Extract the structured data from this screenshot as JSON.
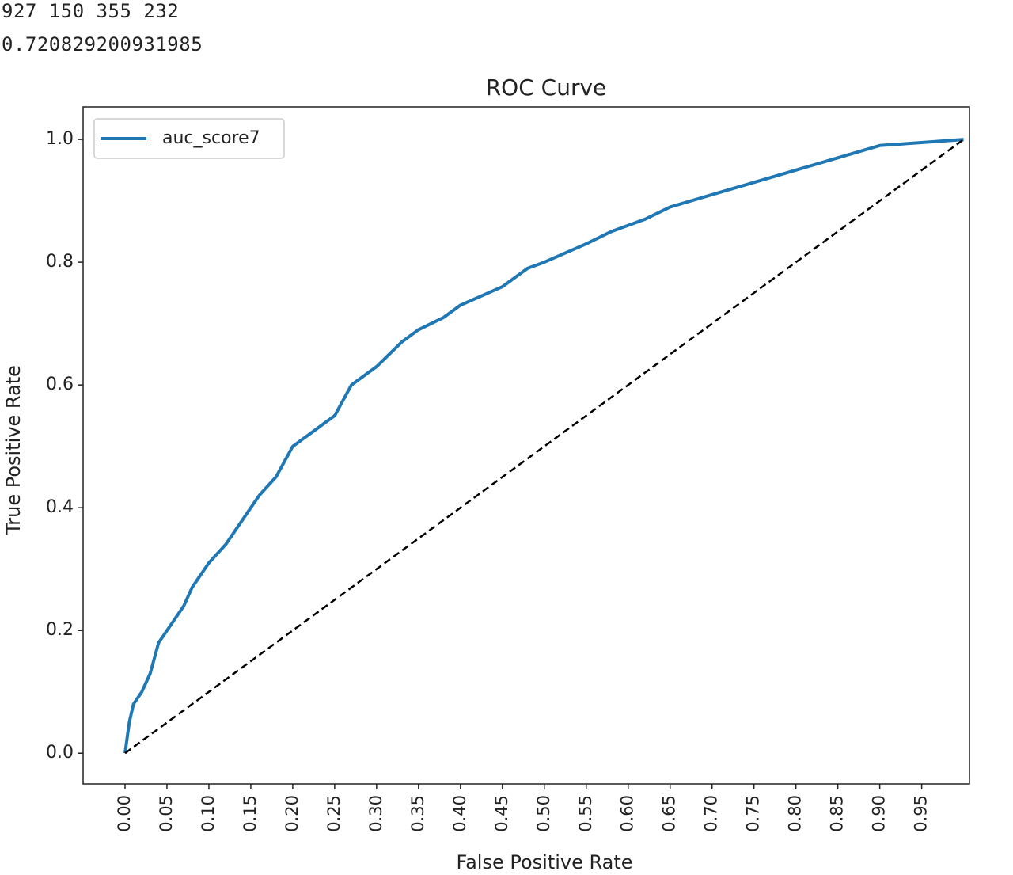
{
  "output_lines": [
    "927 150 355 232",
    "0.720829200931985"
  ],
  "chart_data": {
    "type": "line",
    "title": "ROC Curve",
    "xlabel": "False Positive Rate",
    "ylabel": "True Positive Rate",
    "legend": "upper left",
    "grid": false,
    "xlim": [
      -0.05,
      1.007
    ],
    "ylim": [
      -0.05,
      1.053
    ],
    "xticks": [
      {
        "value": 0,
        "label": "0.00"
      },
      {
        "value": 0.05,
        "label": "0.05"
      },
      {
        "value": 0.1,
        "label": "0.10"
      },
      {
        "value": 0.15,
        "label": "0.15"
      },
      {
        "value": 0.2,
        "label": "0.20"
      },
      {
        "value": 0.25,
        "label": "0.25"
      },
      {
        "value": 0.3,
        "label": "0.30"
      },
      {
        "value": 0.35,
        "label": "0.35"
      },
      {
        "value": 0.4,
        "label": "0.40"
      },
      {
        "value": 0.45,
        "label": "0.45"
      },
      {
        "value": 0.5,
        "label": "0.50"
      },
      {
        "value": 0.55,
        "label": "0.55"
      },
      {
        "value": 0.6,
        "label": "0.60"
      },
      {
        "value": 0.65,
        "label": "0.65"
      },
      {
        "value": 0.7,
        "label": "0.70"
      },
      {
        "value": 0.75,
        "label": "0.75"
      },
      {
        "value": 0.8,
        "label": "0.80"
      },
      {
        "value": 0.85,
        "label": "0.85"
      },
      {
        "value": 0.9,
        "label": "0.90"
      },
      {
        "value": 0.95,
        "label": "0.95"
      }
    ],
    "yticks": [
      {
        "value": 0,
        "label": "0.0"
      },
      0.2,
      0.4,
      0.6,
      0.8,
      {
        "value": 1,
        "label": "1.0"
      }
    ],
    "series": [
      {
        "name": "auc_score7",
        "color": "#1f77b4",
        "style": "solid",
        "x": [
          0,
          0.005,
          0.01,
          0.02,
          0.03,
          0.04,
          0.05,
          0.06,
          0.07,
          0.08,
          0.1,
          0.12,
          0.14,
          0.16,
          0.18,
          0.2,
          0.22,
          0.25,
          0.27,
          0.3,
          0.33,
          0.35,
          0.38,
          0.4,
          0.45,
          0.48,
          0.5,
          0.55,
          0.58,
          0.62,
          0.65,
          0.7,
          0.75,
          0.8,
          0.85,
          0.9,
          0.95,
          1
        ],
        "values": [
          0,
          0.05,
          0.08,
          0.1,
          0.13,
          0.18,
          0.2,
          0.22,
          0.24,
          0.27,
          0.31,
          0.34,
          0.38,
          0.42,
          0.45,
          0.5,
          0.52,
          0.55,
          0.6,
          0.63,
          0.67,
          0.69,
          0.71,
          0.73,
          0.76,
          0.79,
          0.8,
          0.83,
          0.85,
          0.87,
          0.89,
          0.91,
          0.93,
          0.95,
          0.97,
          0.99,
          0.995,
          1
        ]
      },
      {
        "color": "#000000",
        "style": "dashed",
        "x": [
          0,
          1
        ],
        "values": [
          0,
          1
        ]
      }
    ]
  }
}
